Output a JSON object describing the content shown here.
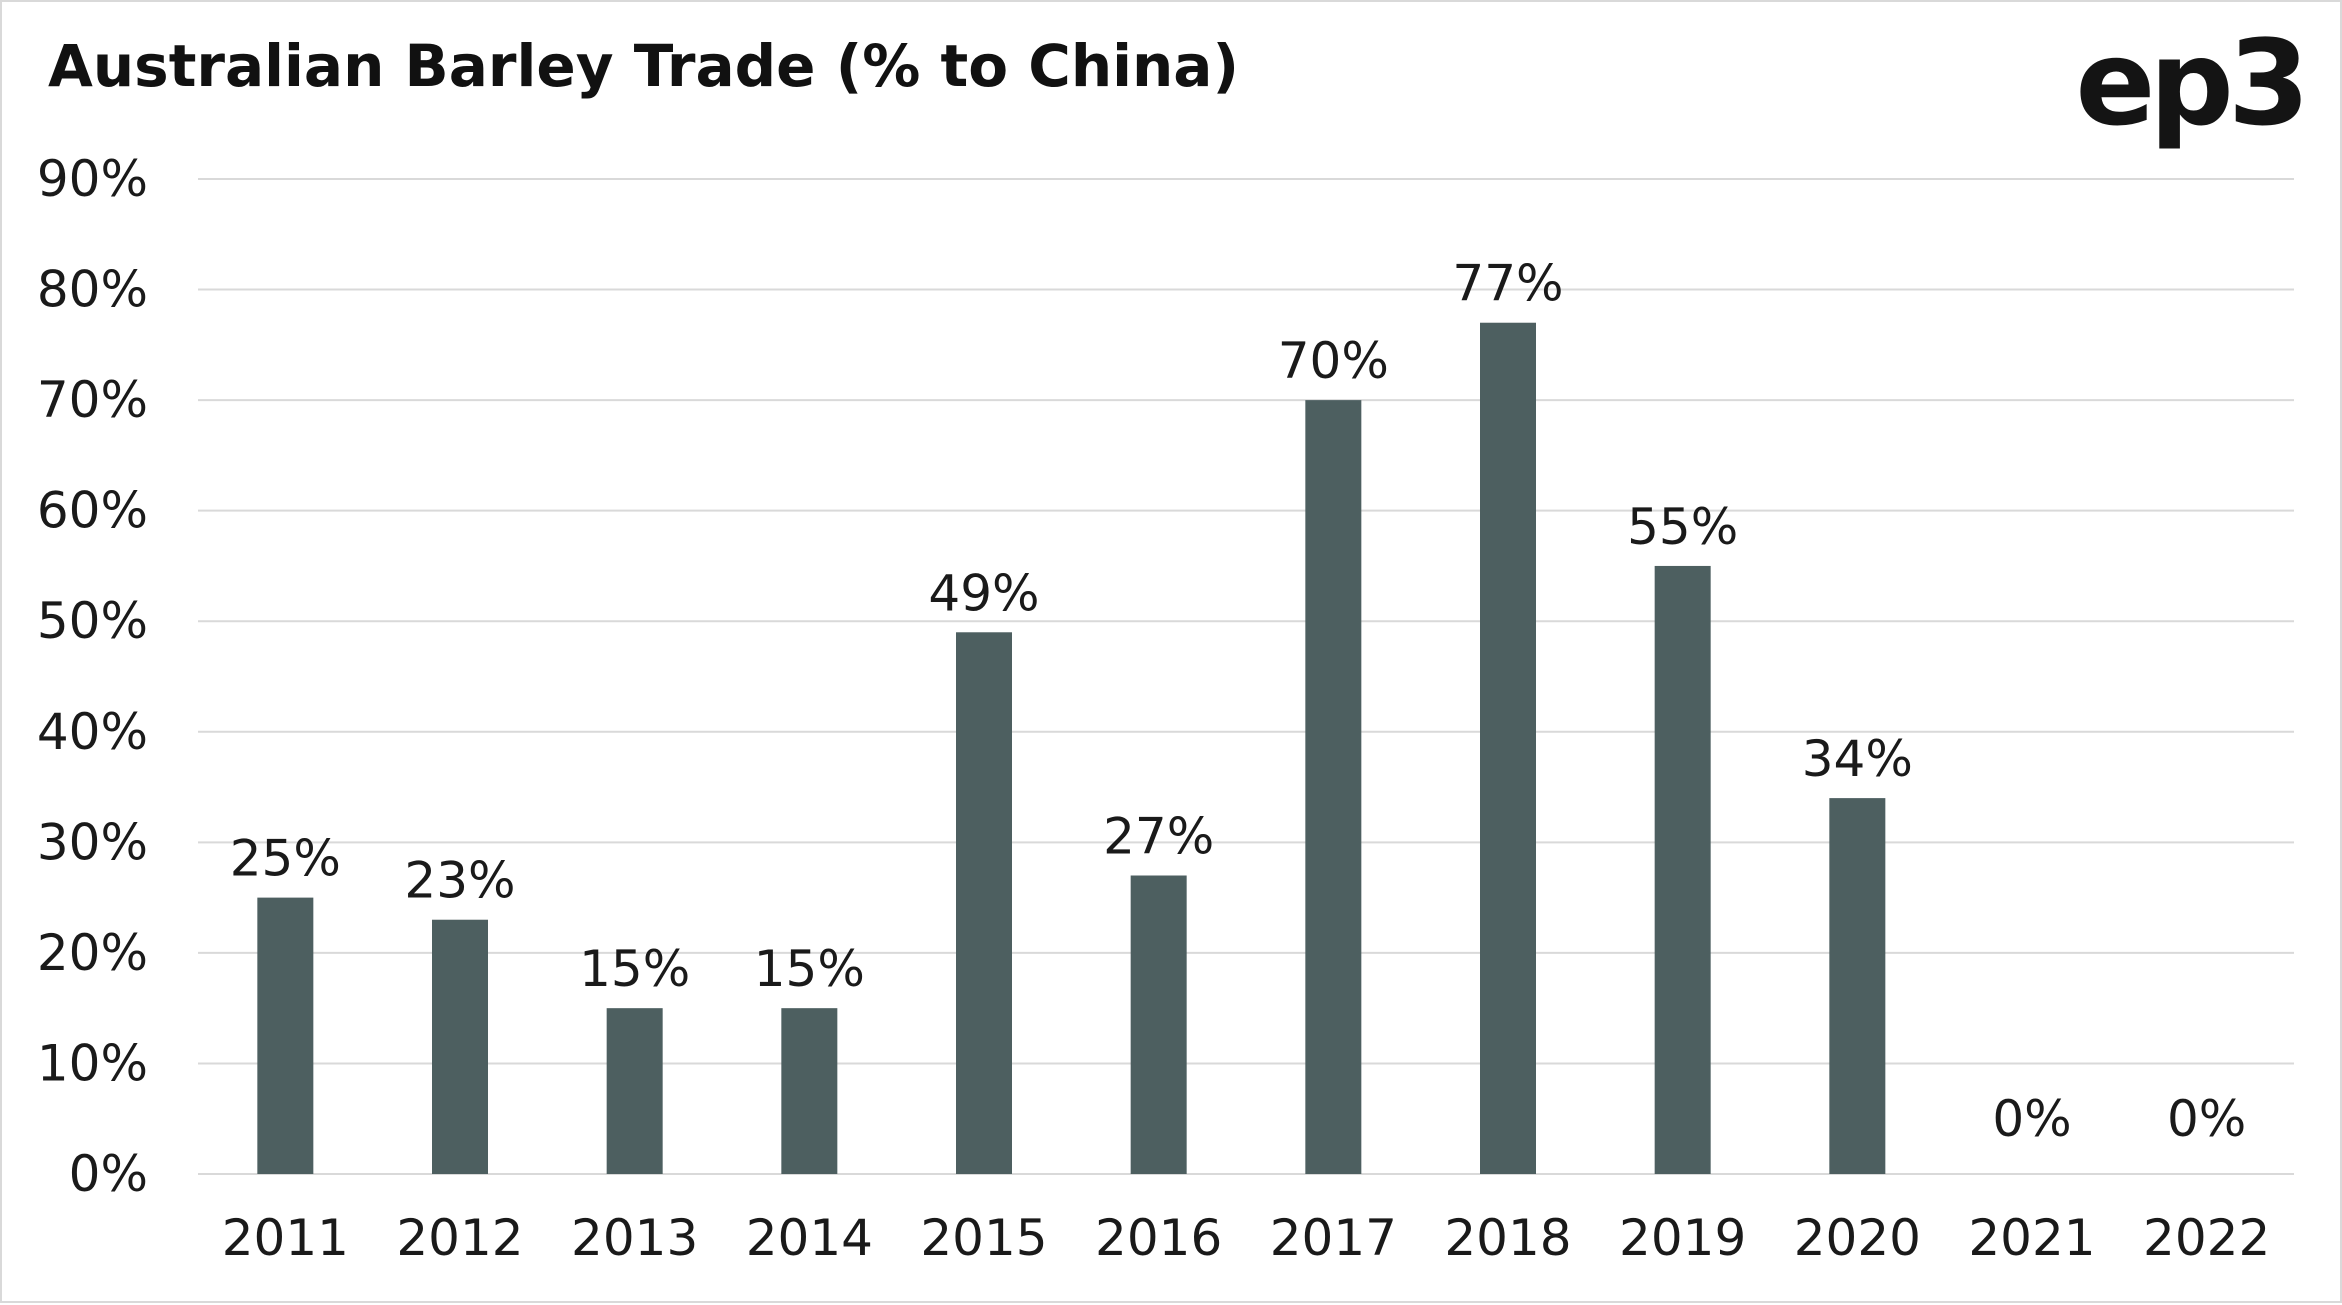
{
  "header": {
    "title": "Australian Barley Trade (% to China)",
    "logo_text": "ep3"
  },
  "colors": {
    "bar": "#4d5f60",
    "grid": "#d9d9d9",
    "text": "#1a1a1a"
  },
  "chart_data": {
    "type": "bar",
    "title": "Australian Barley Trade (% to China)",
    "xlabel": "",
    "ylabel": "",
    "categories": [
      "2011",
      "2012",
      "2013",
      "2014",
      "2015",
      "2016",
      "2017",
      "2018",
      "2019",
      "2020",
      "2021",
      "2022"
    ],
    "values": [
      25,
      23,
      15,
      15,
      49,
      27,
      70,
      77,
      55,
      34,
      0,
      0
    ],
    "data_labels": [
      "25%",
      "23%",
      "15%",
      "15%",
      "49%",
      "27%",
      "70%",
      "77%",
      "55%",
      "34%",
      "0%",
      "0%"
    ],
    "ylim": [
      0,
      90
    ],
    "yticks": [
      0,
      10,
      20,
      30,
      40,
      50,
      60,
      70,
      80,
      90
    ],
    "ytick_labels": [
      "0%",
      "10%",
      "20%",
      "30%",
      "40%",
      "50%",
      "60%",
      "70%",
      "80%",
      "90%"
    ],
    "grid": true,
    "legend": "none"
  }
}
